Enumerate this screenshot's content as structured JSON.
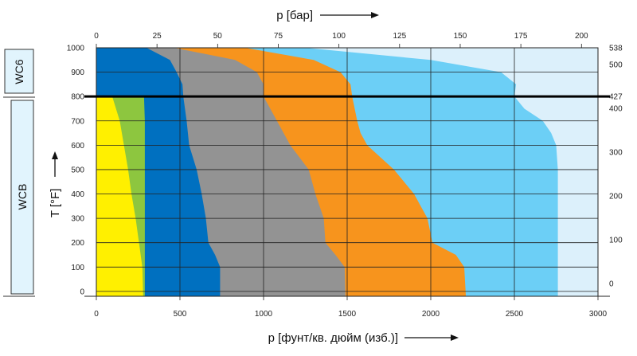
{
  "chart_data": {
    "type": "area",
    "title": "",
    "xlabel_bottom": "p [фунт/кв. дюйм (изб.)]",
    "xlabel_top": "p [бар]",
    "ylabel": "T [°F]",
    "x_range_psi": [
      0,
      3000
    ],
    "x_range_bar": [
      0,
      206.8
    ],
    "y_range_F": [
      -20,
      1000
    ],
    "x_ticks_bottom": [
      "0",
      "500",
      "1000",
      "1500",
      "2000",
      "2500",
      "3000"
    ],
    "x_tick_values_bottom": [
      0,
      500,
      1000,
      1500,
      2000,
      2500,
      3000
    ],
    "x_ticks_top": [
      "0",
      "25",
      "50",
      "75",
      "100",
      "125",
      "150",
      "175",
      "200"
    ],
    "x_tick_values_top": [
      0,
      25,
      50,
      75,
      100,
      125,
      150,
      175,
      200
    ],
    "y_ticks_left": [
      "0",
      "100",
      "200",
      "300",
      "400",
      "500",
      "600",
      "700",
      "800",
      "900",
      "1000"
    ],
    "y_tick_values_left": [
      0,
      100,
      200,
      300,
      400,
      500,
      600,
      700,
      800,
      900,
      1000
    ],
    "y_ticks_right": [
      "0",
      "100",
      "200",
      "300",
      "400",
      "427",
      "500",
      "538"
    ],
    "y_tick_values_right_F": [
      32,
      212,
      392,
      572,
      752,
      800,
      932,
      1000
    ],
    "materials": [
      {
        "label": "WC6",
        "range_F": [
          800,
          1000
        ]
      },
      {
        "label": "WCB",
        "range_F": [
          -20,
          800
        ]
      }
    ],
    "divider_F": 800,
    "grid": true,
    "colors": {
      "background_band": "#dcf0fb",
      "series": [
        "#fff000",
        "#8dc63f",
        "#0070c0",
        "#939393",
        "#f7941d",
        "#6ccff6"
      ],
      "label_box_fill": "#e1f4fd"
    },
    "series": [
      {
        "boundary_psi": [
          [
            -20,
            280
          ],
          [
            100,
            275
          ],
          [
            200,
            255
          ],
          [
            300,
            235
          ],
          [
            400,
            210
          ],
          [
            500,
            190
          ],
          [
            600,
            165
          ],
          [
            700,
            140
          ],
          [
            800,
            95
          ]
        ],
        "color": "#fff000"
      },
      {
        "boundary_psi": [
          [
            -20,
            290
          ],
          [
            100,
            290
          ],
          [
            200,
            290
          ],
          [
            300,
            290
          ],
          [
            400,
            290
          ],
          [
            500,
            290
          ],
          [
            600,
            290
          ],
          [
            700,
            290
          ],
          [
            800,
            285
          ]
        ],
        "color": "#8dc63f"
      },
      {
        "boundary_psi": [
          [
            -20,
            740
          ],
          [
            100,
            740
          ],
          [
            150,
            710
          ],
          [
            200,
            670
          ],
          [
            300,
            655
          ],
          [
            400,
            630
          ],
          [
            500,
            600
          ],
          [
            600,
            555
          ],
          [
            700,
            540
          ],
          [
            800,
            520
          ],
          [
            850,
            515
          ],
          [
            900,
            480
          ],
          [
            950,
            440
          ],
          [
            1000,
            300
          ]
        ],
        "color": "#0070c0"
      },
      {
        "boundary_psi": [
          [
            -20,
            1490
          ],
          [
            100,
            1485
          ],
          [
            150,
            1430
          ],
          [
            200,
            1370
          ],
          [
            300,
            1360
          ],
          [
            400,
            1310
          ],
          [
            500,
            1270
          ],
          [
            600,
            1160
          ],
          [
            700,
            1080
          ],
          [
            800,
            1000
          ],
          [
            850,
            1000
          ],
          [
            900,
            960
          ],
          [
            950,
            830
          ],
          [
            1000,
            465
          ]
        ],
        "color": "#939393"
      },
      {
        "boundary_psi": [
          [
            -20,
            2210
          ],
          [
            100,
            2200
          ],
          [
            150,
            2150
          ],
          [
            200,
            2010
          ],
          [
            300,
            1980
          ],
          [
            400,
            1900
          ],
          [
            500,
            1780
          ],
          [
            600,
            1620
          ],
          [
            650,
            1580
          ],
          [
            700,
            1560
          ],
          [
            800,
            1530
          ],
          [
            850,
            1520
          ],
          [
            900,
            1460
          ],
          [
            950,
            1300
          ],
          [
            1000,
            890
          ]
        ],
        "color": "#f7941d"
      },
      {
        "boundary_psi": [
          [
            -20,
            2760
          ],
          [
            100,
            2760
          ],
          [
            200,
            2760
          ],
          [
            300,
            2760
          ],
          [
            400,
            2760
          ],
          [
            500,
            2760
          ],
          [
            600,
            2750
          ],
          [
            650,
            2720
          ],
          [
            700,
            2670
          ],
          [
            750,
            2560
          ],
          [
            800,
            2500
          ],
          [
            850,
            2510
          ],
          [
            900,
            2420
          ],
          [
            950,
            2000
          ],
          [
            1000,
            1250
          ]
        ],
        "color": "#6ccff6"
      }
    ]
  }
}
